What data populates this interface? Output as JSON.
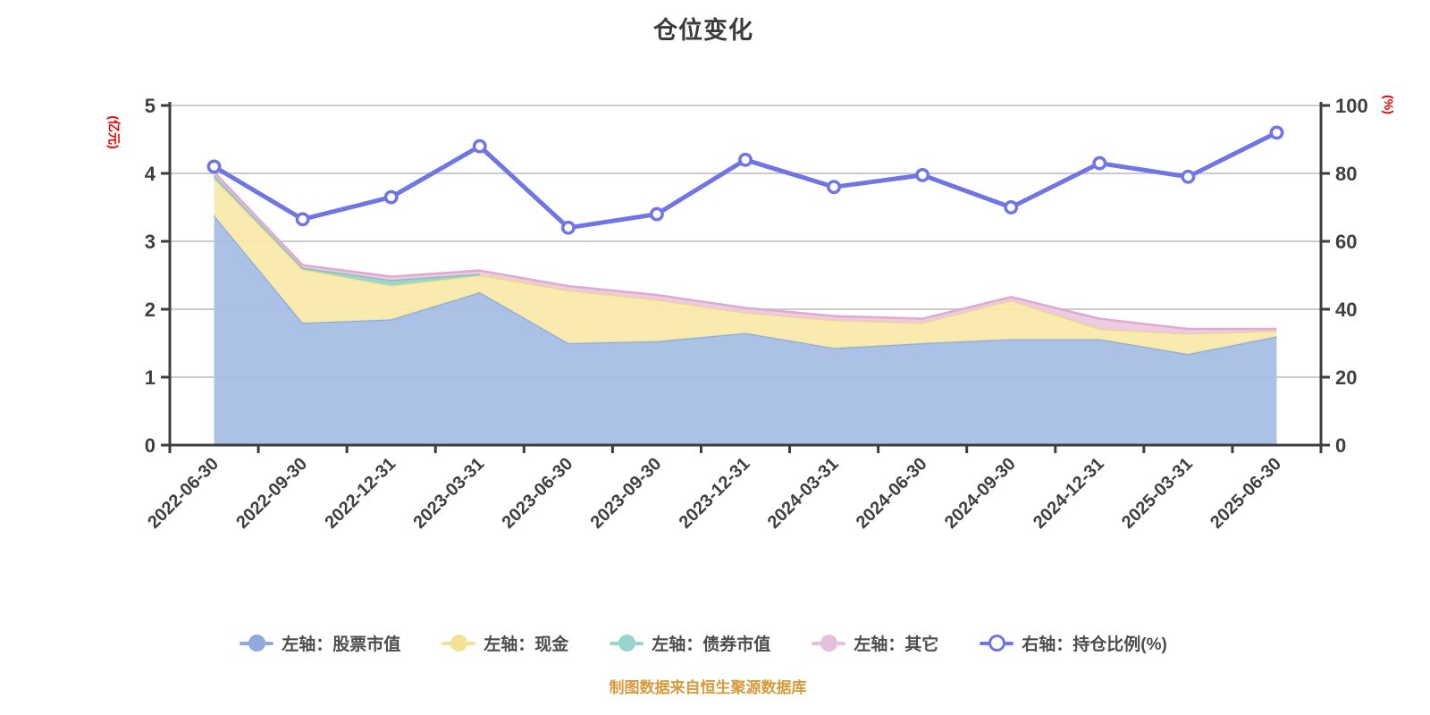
{
  "title": "仓位变化",
  "footer": "制图数据来自恒生聚源数据库",
  "left_axis": {
    "name": "(亿元)",
    "ticks": [
      "0",
      "1",
      "2",
      "3",
      "4",
      "5"
    ],
    "max": 5,
    "name_color": "#f00000"
  },
  "right_axis": {
    "name": "(%)",
    "ticks": [
      "0",
      "20",
      "40",
      "60",
      "80",
      "100"
    ],
    "max": 100,
    "name_color": "#f00000"
  },
  "legend": [
    {
      "label": "左轴：股票市值",
      "color": "#8fa9dc",
      "hollow": false
    },
    {
      "label": "左轴：现金",
      "color": "#f2e197",
      "hollow": false
    },
    {
      "label": "左轴：债券市值",
      "color": "#99d5cc",
      "hollow": false
    },
    {
      "label": "左轴：其它",
      "color": "#e5bfdc",
      "hollow": false
    },
    {
      "label": "右轴：持仓比例(%)",
      "color": "#6f76e4",
      "hollow": true
    }
  ],
  "chart_data": {
    "type": "area",
    "categories": [
      "2022-06-30",
      "2022-09-30",
      "2022-12-31",
      "2023-03-31",
      "2023-06-30",
      "2023-09-30",
      "2023-12-31",
      "2024-03-31",
      "2024-06-30",
      "2024-09-30",
      "2024-12-31",
      "2025-03-31",
      "2025-06-30"
    ],
    "series": [
      {
        "name": "股票市值",
        "axis": "left",
        "type": "stacked-area",
        "fill": "#a4bce4",
        "stroke": "#91acdb",
        "values": [
          3.38,
          1.8,
          1.85,
          2.25,
          1.5,
          1.53,
          1.65,
          1.43,
          1.5,
          1.56,
          1.56,
          1.34,
          1.6
        ]
      },
      {
        "name": "现金",
        "axis": "left",
        "type": "stacked-area",
        "fill": "#f8e9a8",
        "stroke": "#edd88e",
        "values": [
          0.55,
          0.79,
          0.5,
          0.25,
          0.78,
          0.61,
          0.3,
          0.41,
          0.3,
          0.57,
          0.15,
          0.3,
          0.08
        ]
      },
      {
        "name": "债券市值",
        "axis": "left",
        "type": "stacked-area",
        "fill": "#94d2cb",
        "stroke": "#74c5bb",
        "values": [
          0.04,
          0.02,
          0.08,
          0.02,
          0,
          0,
          0,
          0,
          0,
          0,
          0,
          0,
          0
        ]
      },
      {
        "name": "其它",
        "axis": "left",
        "type": "stacked-area",
        "fill": "#ebc7df",
        "stroke": "#e0a9d0",
        "values": [
          0.05,
          0.04,
          0.05,
          0.05,
          0.06,
          0.07,
          0.07,
          0.06,
          0.06,
          0.05,
          0.15,
          0.07,
          0.03
        ]
      },
      {
        "name": "持仓比例(%)",
        "axis": "right",
        "type": "line",
        "stroke": "#6f76e4",
        "values": [
          82,
          66.5,
          73,
          88,
          64,
          68,
          84,
          76,
          79.5,
          70,
          83,
          79,
          92
        ]
      }
    ],
    "left_ylim": [
      0,
      5
    ],
    "right_ylim": [
      0,
      100
    ],
    "grid": true,
    "legend_position": "bottom",
    "grid_color": "#cbcbcb",
    "axis_color": "#3d3d3d",
    "tick_label_color": "#3f3f3f"
  }
}
